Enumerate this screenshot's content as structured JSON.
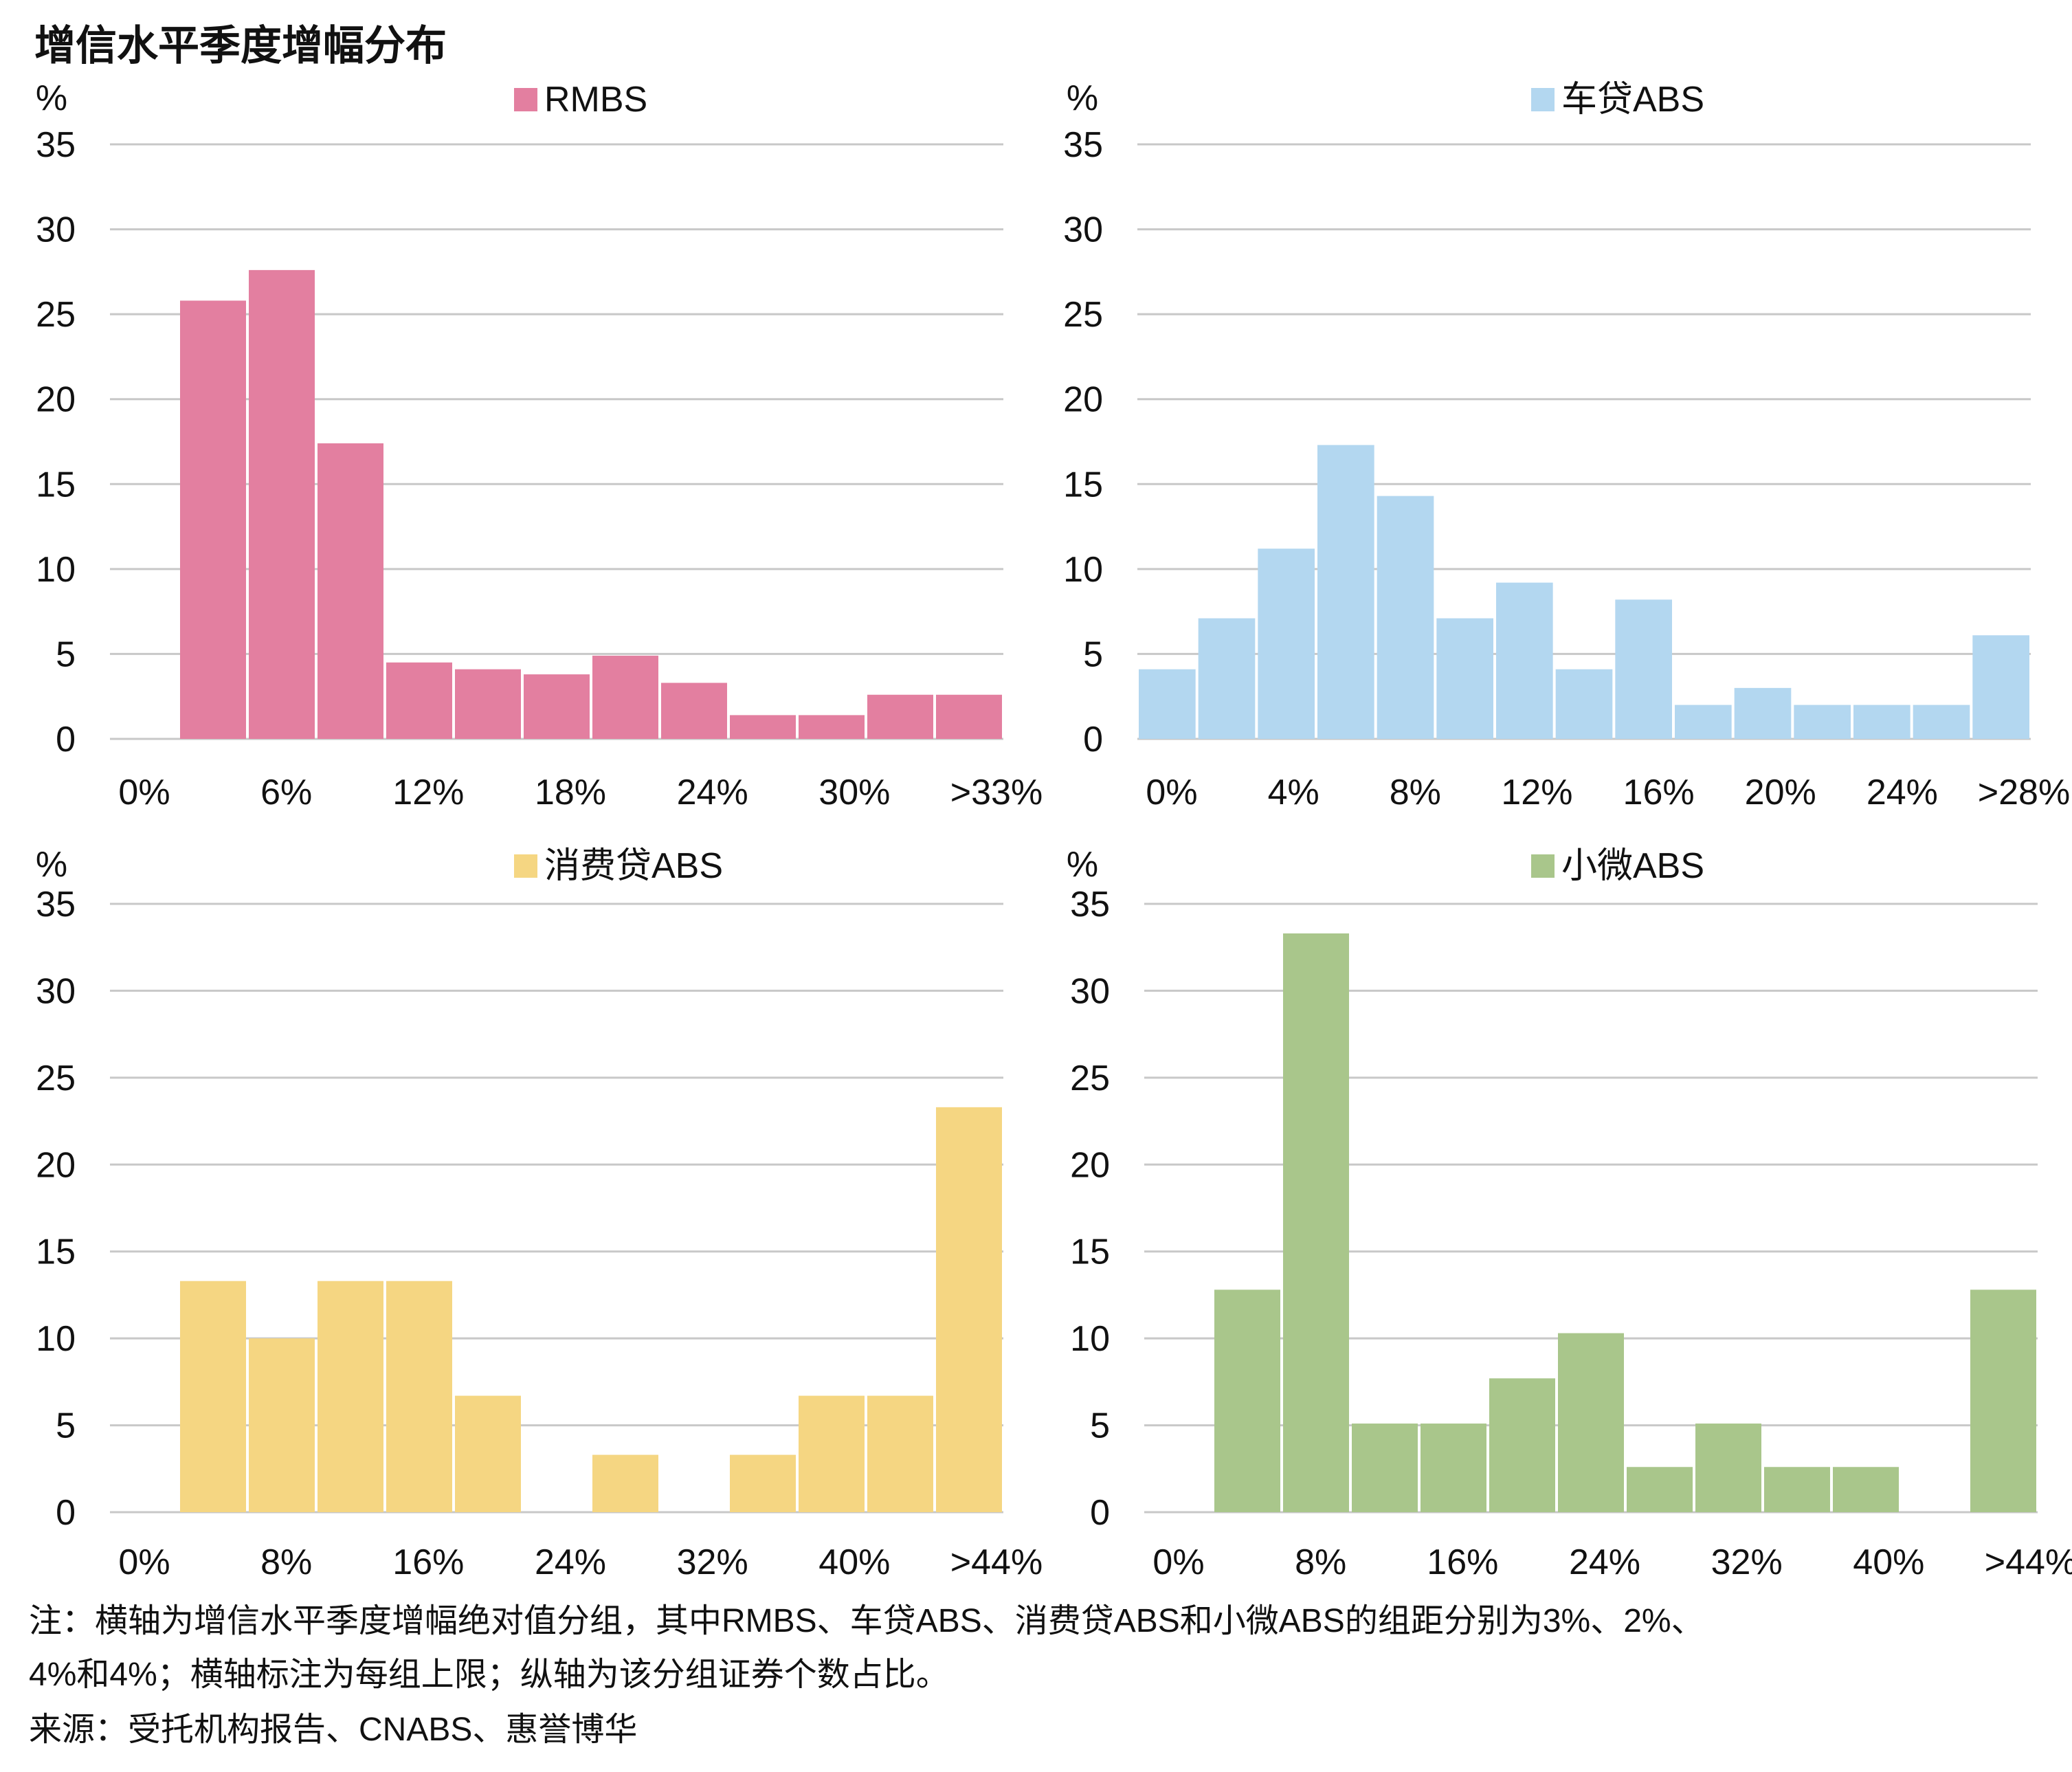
{
  "title": "增信水平季度增幅分布",
  "unit": "%",
  "note_line1": "注：横轴为增信水平季度增幅绝对值分组，其中RMBS、车贷ABS、消费贷ABS和小微ABS的组距分别为3%、2%、",
  "note_line2": "4%和4%；横轴标注为每组上限；纵轴为该分组证券个数占比。",
  "source": "来源：受托机构报告、CNABS、惠誉博华",
  "chart_data": [
    {
      "type": "bar",
      "title": "RMBS",
      "color": "#E37FA0",
      "ylabel": "%",
      "ylim": [
        0,
        35
      ],
      "yticks": [
        "0",
        "5",
        "10",
        "15",
        "20",
        "25",
        "30",
        "35"
      ],
      "xticks": [
        "0%",
        "6%",
        "12%",
        "18%",
        "24%",
        "30%",
        ">33%"
      ],
      "values": [
        0,
        25.8,
        27.6,
        17.4,
        4.5,
        4.1,
        3.8,
        4.9,
        3.3,
        1.4,
        1.4,
        2.6,
        2.6
      ]
    },
    {
      "type": "bar",
      "title": "车贷ABS",
      "color": "#B3D7F0",
      "ylabel": "%",
      "ylim": [
        0,
        35
      ],
      "yticks": [
        "0",
        "5",
        "10",
        "15",
        "20",
        "25",
        "30",
        "35"
      ],
      "xticks": [
        "0%",
        "4%",
        "8%",
        "12%",
        "16%",
        "20%",
        "24%",
        ">28%"
      ],
      "values": [
        4.1,
        7.1,
        11.2,
        17.3,
        14.3,
        7.1,
        9.2,
        4.1,
        8.2,
        2.0,
        3.0,
        2.0,
        2.0,
        2.0,
        6.1
      ]
    },
    {
      "type": "bar",
      "title": "消费贷ABS",
      "color": "#F5D682",
      "ylabel": "%",
      "ylim": [
        0,
        35
      ],
      "yticks": [
        "0",
        "5",
        "10",
        "15",
        "20",
        "25",
        "30",
        "35"
      ],
      "xticks": [
        "0%",
        "8%",
        "16%",
        "24%",
        "32%",
        "40%",
        ">44%"
      ],
      "values": [
        0,
        13.3,
        10.0,
        13.3,
        13.3,
        6.7,
        0,
        3.3,
        0,
        3.3,
        6.7,
        6.7,
        23.3
      ]
    },
    {
      "type": "bar",
      "title": "小微ABS",
      "color": "#A9C68B",
      "ylabel": "%",
      "ylim": [
        0,
        35
      ],
      "yticks": [
        "0",
        "5",
        "10",
        "15",
        "20",
        "25",
        "30",
        "35"
      ],
      "xticks": [
        "0%",
        "8%",
        "16%",
        "24%",
        "32%",
        "40%",
        ">44%"
      ],
      "values": [
        0,
        12.8,
        33.3,
        5.1,
        5.1,
        7.7,
        10.3,
        2.6,
        5.1,
        2.6,
        2.6,
        0,
        12.8
      ]
    }
  ]
}
